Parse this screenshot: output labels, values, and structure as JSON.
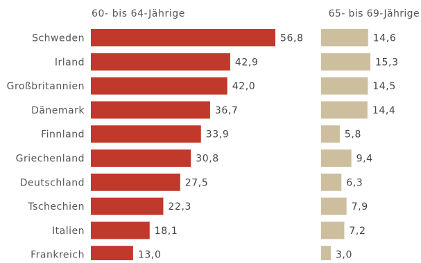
{
  "chart_data": [
    {
      "type": "bar",
      "orientation": "horizontal",
      "title": "60- bis 64-Jährige",
      "categories": [
        "Schweden",
        "Irland",
        "Großbritannien",
        "Dänemark",
        "Finnland",
        "Griechenland",
        "Deutschland",
        "Tschechien",
        "Italien",
        "Frankreich"
      ],
      "values": [
        56.8,
        42.9,
        42.0,
        36.7,
        33.9,
        30.8,
        27.5,
        22.3,
        18.1,
        13.0
      ],
      "value_labels": [
        "56,8",
        "42,9",
        "42,0",
        "36,7",
        "33,9",
        "30,8",
        "27,5",
        "22,3",
        "18,1",
        "13,0"
      ],
      "color": "#c0392b",
      "xlim": [
        0,
        56.8
      ]
    },
    {
      "type": "bar",
      "orientation": "horizontal",
      "title": "65- bis 69-Jährige",
      "categories": [
        "Schweden",
        "Irland",
        "Großbritannien",
        "Dänemark",
        "Finnland",
        "Griechenland",
        "Deutschland",
        "Tschechien",
        "Italien",
        "Frankreich"
      ],
      "values": [
        14.6,
        15.3,
        14.5,
        14.4,
        5.8,
        9.4,
        6.3,
        7.9,
        7.2,
        3.0
      ],
      "value_labels": [
        "14,6",
        "15,3",
        "14,5",
        "14,4",
        "5,8",
        "9,4",
        "6,3",
        "7,9",
        "7,2",
        "3,0"
      ],
      "color": "#cdbf9e",
      "xlim": [
        0,
        15.3
      ]
    }
  ]
}
